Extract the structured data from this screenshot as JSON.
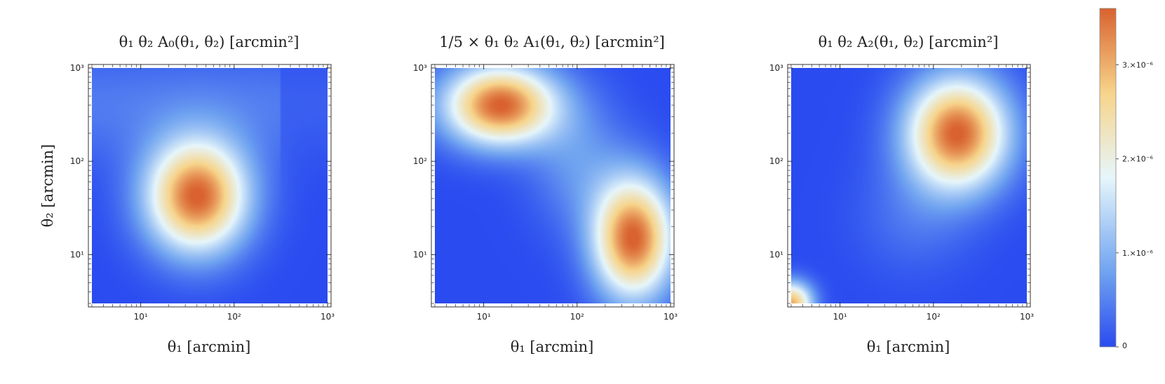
{
  "chart_data": [
    {
      "type": "heatmap",
      "title": "θ₁ θ₂ A₀(θ₁, θ₂)   [arcmin²]",
      "xlabel": "θ₁   [arcmin]",
      "ylabel": "θ₂   [arcmin]",
      "x_scale": "log",
      "y_scale": "log",
      "xlim": [
        3,
        1000
      ],
      "ylim": [
        3,
        1000
      ],
      "x_ticks": [
        "10¹",
        "10²",
        "10³"
      ],
      "y_ticks": [
        "10¹",
        "10²",
        "10³"
      ],
      "peaks": [
        {
          "theta1": 40,
          "theta2": 42,
          "value": 3.6e-06
        }
      ]
    },
    {
      "type": "heatmap",
      "title": "1/5 × θ₁ θ₂ A₁(θ₁, θ₂)   [arcmin²]",
      "xlabel": "θ₁   [arcmin]",
      "ylabel": "",
      "x_scale": "log",
      "y_scale": "log",
      "xlim": [
        3,
        1000
      ],
      "ylim": [
        3,
        1000
      ],
      "x_ticks": [
        "10¹",
        "10²",
        "10³"
      ],
      "y_ticks": [
        "10¹",
        "10²",
        "10³"
      ],
      "peaks": [
        {
          "theta1": 15,
          "theta2": 400,
          "value": 3.6e-06
        },
        {
          "theta1": 400,
          "theta2": 15,
          "value": 3.6e-06
        }
      ]
    },
    {
      "type": "heatmap",
      "title": "θ₁ θ₂ A₂(θ₁, θ₂)   [arcmin²]",
      "xlabel": "θ₁   [arcmin]",
      "ylabel": "",
      "x_scale": "log",
      "y_scale": "log",
      "xlim": [
        3,
        1000
      ],
      "ylim": [
        3,
        1000
      ],
      "x_ticks": [
        "10¹",
        "10²",
        "10³"
      ],
      "y_ticks": [
        "10¹",
        "10²",
        "10³"
      ],
      "peaks": [
        {
          "theta1": 180,
          "theta2": 200,
          "value": 3.6e-06
        },
        {
          "theta1": 3,
          "theta2": 3,
          "value": 3e-06
        }
      ]
    }
  ],
  "colorbar": {
    "min": 0,
    "max": 3.6e-06,
    "tick_values": [
      0,
      1e-06,
      2e-06,
      3e-06
    ],
    "tick_labels": [
      "0",
      "1.×10⁻⁶",
      "2.×10⁻⁶",
      "3.×10⁻⁶"
    ],
    "colors": [
      "#2a4bf0",
      "#6fa3f0",
      "#e6f6fb",
      "#f7d48a",
      "#d9622f"
    ]
  }
}
